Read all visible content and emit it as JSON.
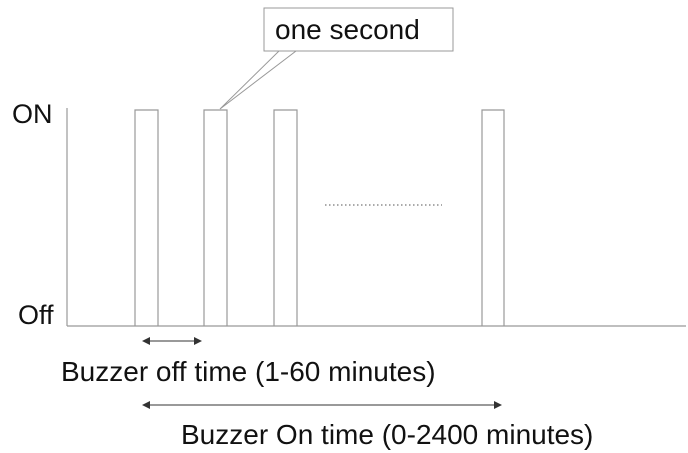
{
  "diagram": {
    "y_levels": {
      "on": "ON",
      "off": "Off"
    },
    "callout": {
      "text": "one second"
    },
    "annotations": {
      "off_time": "Buzzer off time (1-60 minutes)",
      "on_time": "Buzzer On time (0-2400 minutes)"
    },
    "continuation_marker": "dotted"
  },
  "colors": {
    "stroke": "#999999",
    "text": "#111111",
    "background": "#ffffff"
  }
}
